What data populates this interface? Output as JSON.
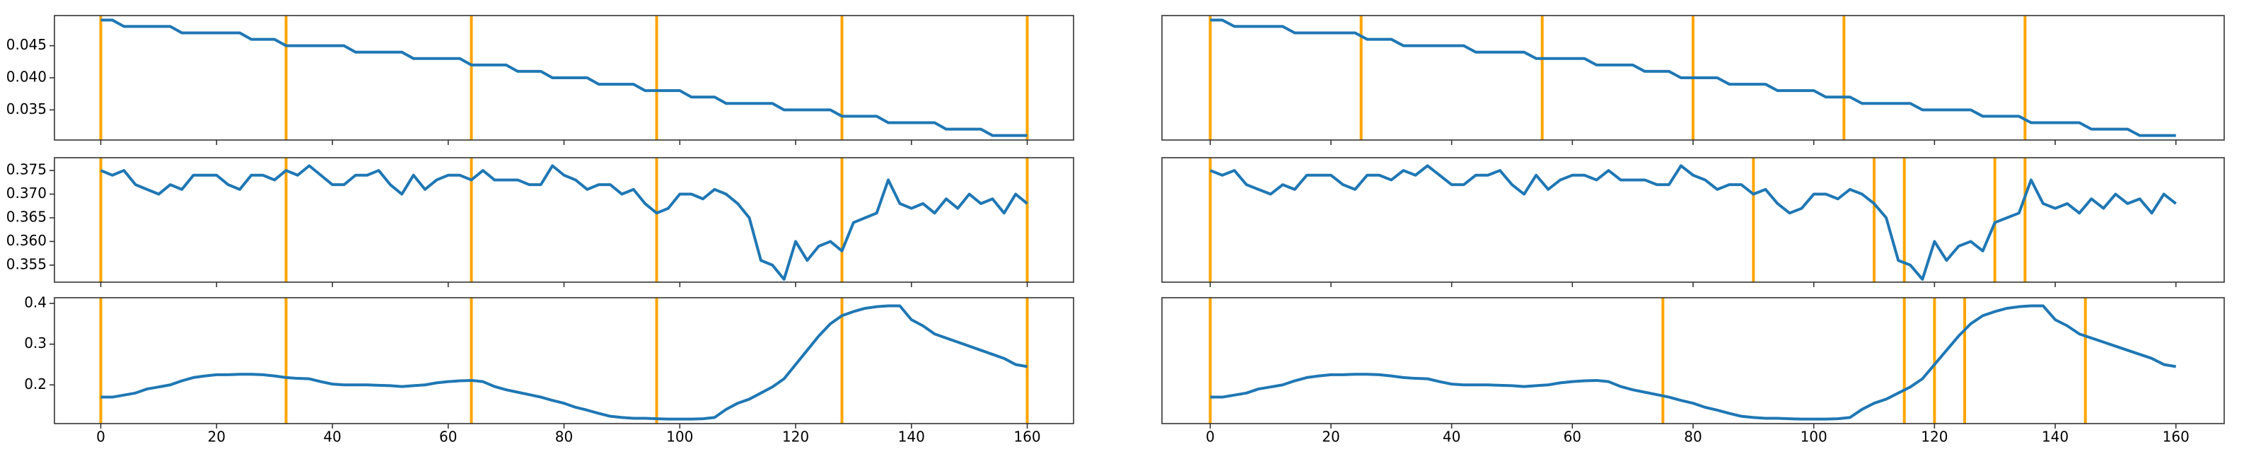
{
  "chart_data": [
    {
      "type": "line",
      "color": "#1f77b4",
      "vline_color": "#ffa500",
      "x": [
        0,
        2,
        4,
        6,
        8,
        10,
        12,
        14,
        16,
        18,
        20,
        22,
        24,
        26,
        28,
        30,
        32,
        34,
        36,
        38,
        40,
        42,
        44,
        46,
        48,
        50,
        52,
        54,
        56,
        58,
        60,
        62,
        64,
        66,
        68,
        70,
        72,
        74,
        76,
        78,
        80,
        82,
        84,
        86,
        88,
        90,
        92,
        94,
        96,
        98,
        100,
        102,
        104,
        106,
        108,
        110,
        112,
        114,
        116,
        118,
        120,
        122,
        124,
        126,
        128,
        130,
        132,
        134,
        136,
        138,
        140,
        142,
        144,
        146,
        148,
        150,
        152,
        154,
        156,
        158,
        160
      ],
      "values": [
        0.049,
        0.049,
        0.048,
        0.048,
        0.048,
        0.048,
        0.048,
        0.047,
        0.047,
        0.047,
        0.047,
        0.047,
        0.047,
        0.046,
        0.046,
        0.046,
        0.045,
        0.045,
        0.045,
        0.045,
        0.045,
        0.045,
        0.044,
        0.044,
        0.044,
        0.044,
        0.044,
        0.043,
        0.043,
        0.043,
        0.043,
        0.043,
        0.042,
        0.042,
        0.042,
        0.042,
        0.041,
        0.041,
        0.041,
        0.04,
        0.04,
        0.04,
        0.04,
        0.039,
        0.039,
        0.039,
        0.039,
        0.038,
        0.038,
        0.038,
        0.038,
        0.037,
        0.037,
        0.037,
        0.036,
        0.036,
        0.036,
        0.036,
        0.036,
        0.035,
        0.035,
        0.035,
        0.035,
        0.035,
        0.034,
        0.034,
        0.034,
        0.034,
        0.033,
        0.033,
        0.033,
        0.033,
        0.033,
        0.032,
        0.032,
        0.032,
        0.032,
        0.031,
        0.031,
        0.031,
        0.031
      ],
      "vlines": [
        0,
        32,
        64,
        96,
        128,
        160
      ],
      "xlim": [
        -8,
        168
      ],
      "xticks": [
        0,
        20,
        40,
        60,
        80,
        100,
        120,
        140,
        160
      ],
      "ylim": [
        0.0303,
        0.0497
      ],
      "yticks": [
        0.035,
        {
          "value": 0.04,
          "label": "0.040"
        },
        0.045
      ]
    },
    {
      "type": "line",
      "color": "#1f77b4",
      "vline_color": "#ffa500",
      "x": [
        0,
        2,
        4,
        6,
        8,
        10,
        12,
        14,
        16,
        18,
        20,
        22,
        24,
        26,
        28,
        30,
        32,
        34,
        36,
        38,
        40,
        42,
        44,
        46,
        48,
        50,
        52,
        54,
        56,
        58,
        60,
        62,
        64,
        66,
        68,
        70,
        72,
        74,
        76,
        78,
        80,
        82,
        84,
        86,
        88,
        90,
        92,
        94,
        96,
        98,
        100,
        102,
        104,
        106,
        108,
        110,
        112,
        114,
        116,
        118,
        120,
        122,
        124,
        126,
        128,
        130,
        132,
        134,
        136,
        138,
        140,
        142,
        144,
        146,
        148,
        150,
        152,
        154,
        156,
        158,
        160
      ],
      "values": [
        0.375,
        0.374,
        0.375,
        0.372,
        0.371,
        0.37,
        0.372,
        0.371,
        0.374,
        0.374,
        0.374,
        0.372,
        0.371,
        0.374,
        0.374,
        0.373,
        0.375,
        0.374,
        0.376,
        0.374,
        0.372,
        0.372,
        0.374,
        0.374,
        0.375,
        0.372,
        0.37,
        0.374,
        0.371,
        0.373,
        0.374,
        0.374,
        0.373,
        0.375,
        0.373,
        0.373,
        0.373,
        0.372,
        0.372,
        0.376,
        0.374,
        0.373,
        0.371,
        0.372,
        0.372,
        0.37,
        0.371,
        0.368,
        0.366,
        0.367,
        0.37,
        0.37,
        0.369,
        0.371,
        0.37,
        0.368,
        0.365,
        0.356,
        0.355,
        0.352,
        0.36,
        0.356,
        0.359,
        0.36,
        0.358,
        0.364,
        0.365,
        0.366,
        0.373,
        0.368,
        0.367,
        0.368,
        0.366,
        0.369,
        0.367,
        0.37,
        0.368,
        0.369,
        0.366,
        0.37,
        0.368
      ],
      "vlines": [
        0,
        32,
        64,
        96,
        128,
        160
      ],
      "xlim": [
        -8,
        168
      ],
      "xticks": [
        0,
        20,
        40,
        60,
        80,
        100,
        120,
        140,
        160
      ],
      "ylim": [
        0.3514,
        0.3777
      ],
      "yticks": [
        0.355,
        {
          "value": 0.36,
          "label": "0.360"
        },
        0.365,
        {
          "value": 0.37,
          "label": "0.370"
        },
        0.375
      ]
    },
    {
      "type": "line",
      "color": "#1f77b4",
      "vline_color": "#ffa500",
      "x": [
        0,
        2,
        4,
        6,
        8,
        10,
        12,
        14,
        16,
        18,
        20,
        22,
        24,
        26,
        28,
        30,
        32,
        34,
        36,
        38,
        40,
        42,
        44,
        46,
        48,
        50,
        52,
        54,
        56,
        58,
        60,
        62,
        64,
        66,
        68,
        70,
        72,
        74,
        76,
        78,
        80,
        82,
        84,
        86,
        88,
        90,
        92,
        94,
        96,
        98,
        100,
        102,
        104,
        106,
        108,
        110,
        112,
        114,
        116,
        118,
        120,
        122,
        124,
        126,
        128,
        130,
        132,
        134,
        136,
        138,
        140,
        142,
        144,
        146,
        148,
        150,
        152,
        154,
        156,
        158,
        160
      ],
      "values": [
        0.17,
        0.17,
        0.175,
        0.18,
        0.19,
        0.195,
        0.2,
        0.21,
        0.218,
        0.222,
        0.225,
        0.225,
        0.226,
        0.226,
        0.225,
        0.222,
        0.218,
        0.216,
        0.215,
        0.208,
        0.202,
        0.2,
        0.2,
        0.2,
        0.199,
        0.198,
        0.196,
        0.198,
        0.2,
        0.205,
        0.208,
        0.21,
        0.211,
        0.208,
        0.196,
        0.188,
        0.182,
        0.176,
        0.17,
        0.162,
        0.155,
        0.145,
        0.138,
        0.13,
        0.123,
        0.12,
        0.118,
        0.118,
        0.117,
        0.116,
        0.116,
        0.116,
        0.117,
        0.12,
        0.14,
        0.155,
        0.165,
        0.18,
        0.195,
        0.215,
        0.25,
        0.285,
        0.32,
        0.35,
        0.37,
        0.38,
        0.388,
        0.392,
        0.394,
        0.394,
        0.36,
        0.345,
        0.325,
        0.315,
        0.305,
        0.295,
        0.285,
        0.275,
        0.265,
        0.25,
        0.245
      ],
      "vlines": [
        0,
        32,
        64,
        96,
        128,
        160
      ],
      "xlim": [
        -8,
        168
      ],
      "xticks": [
        0,
        20,
        40,
        60,
        80,
        100,
        120,
        140,
        160
      ],
      "ylim": [
        0.105,
        0.414
      ],
      "yticks": [
        0.2,
        0.3,
        0.4
      ]
    },
    {
      "type": "line",
      "color": "#1f77b4",
      "vline_color": "#ffa500",
      "x": [
        0,
        2,
        4,
        6,
        8,
        10,
        12,
        14,
        16,
        18,
        20,
        22,
        24,
        26,
        28,
        30,
        32,
        34,
        36,
        38,
        40,
        42,
        44,
        46,
        48,
        50,
        52,
        54,
        56,
        58,
        60,
        62,
        64,
        66,
        68,
        70,
        72,
        74,
        76,
        78,
        80,
        82,
        84,
        86,
        88,
        90,
        92,
        94,
        96,
        98,
        100,
        102,
        104,
        106,
        108,
        110,
        112,
        114,
        116,
        118,
        120,
        122,
        124,
        126,
        128,
        130,
        132,
        134,
        136,
        138,
        140,
        142,
        144,
        146,
        148,
        150,
        152,
        154,
        156,
        158,
        160
      ],
      "values": [
        0.049,
        0.049,
        0.048,
        0.048,
        0.048,
        0.048,
        0.048,
        0.047,
        0.047,
        0.047,
        0.047,
        0.047,
        0.047,
        0.046,
        0.046,
        0.046,
        0.045,
        0.045,
        0.045,
        0.045,
        0.045,
        0.045,
        0.044,
        0.044,
        0.044,
        0.044,
        0.044,
        0.043,
        0.043,
        0.043,
        0.043,
        0.043,
        0.042,
        0.042,
        0.042,
        0.042,
        0.041,
        0.041,
        0.041,
        0.04,
        0.04,
        0.04,
        0.04,
        0.039,
        0.039,
        0.039,
        0.039,
        0.038,
        0.038,
        0.038,
        0.038,
        0.037,
        0.037,
        0.037,
        0.036,
        0.036,
        0.036,
        0.036,
        0.036,
        0.035,
        0.035,
        0.035,
        0.035,
        0.035,
        0.034,
        0.034,
        0.034,
        0.034,
        0.033,
        0.033,
        0.033,
        0.033,
        0.033,
        0.032,
        0.032,
        0.032,
        0.032,
        0.031,
        0.031,
        0.031,
        0.031
      ],
      "vlines": [
        0,
        25,
        55,
        80,
        105,
        135
      ],
      "xlim": [
        -8,
        168
      ],
      "xticks": [
        0,
        20,
        40,
        60,
        80,
        100,
        120,
        140,
        160
      ],
      "ylim": [
        0.0303,
        0.0497
      ]
    },
    {
      "type": "line",
      "color": "#1f77b4",
      "vline_color": "#ffa500",
      "x": [
        0,
        2,
        4,
        6,
        8,
        10,
        12,
        14,
        16,
        18,
        20,
        22,
        24,
        26,
        28,
        30,
        32,
        34,
        36,
        38,
        40,
        42,
        44,
        46,
        48,
        50,
        52,
        54,
        56,
        58,
        60,
        62,
        64,
        66,
        68,
        70,
        72,
        74,
        76,
        78,
        80,
        82,
        84,
        86,
        88,
        90,
        92,
        94,
        96,
        98,
        100,
        102,
        104,
        106,
        108,
        110,
        112,
        114,
        116,
        118,
        120,
        122,
        124,
        126,
        128,
        130,
        132,
        134,
        136,
        138,
        140,
        142,
        144,
        146,
        148,
        150,
        152,
        154,
        156,
        158,
        160
      ],
      "values": [
        0.375,
        0.374,
        0.375,
        0.372,
        0.371,
        0.37,
        0.372,
        0.371,
        0.374,
        0.374,
        0.374,
        0.372,
        0.371,
        0.374,
        0.374,
        0.373,
        0.375,
        0.374,
        0.376,
        0.374,
        0.372,
        0.372,
        0.374,
        0.374,
        0.375,
        0.372,
        0.37,
        0.374,
        0.371,
        0.373,
        0.374,
        0.374,
        0.373,
        0.375,
        0.373,
        0.373,
        0.373,
        0.372,
        0.372,
        0.376,
        0.374,
        0.373,
        0.371,
        0.372,
        0.372,
        0.37,
        0.371,
        0.368,
        0.366,
        0.367,
        0.37,
        0.37,
        0.369,
        0.371,
        0.37,
        0.368,
        0.365,
        0.356,
        0.355,
        0.352,
        0.36,
        0.356,
        0.359,
        0.36,
        0.358,
        0.364,
        0.365,
        0.366,
        0.373,
        0.368,
        0.367,
        0.368,
        0.366,
        0.369,
        0.367,
        0.37,
        0.368,
        0.369,
        0.366,
        0.37,
        0.368
      ],
      "vlines": [
        0,
        90,
        110,
        115,
        130,
        135
      ],
      "xlim": [
        -8,
        168
      ],
      "xticks": [
        0,
        20,
        40,
        60,
        80,
        100,
        120,
        140,
        160
      ],
      "ylim": [
        0.3514,
        0.3777
      ]
    },
    {
      "type": "line",
      "color": "#1f77b4",
      "vline_color": "#ffa500",
      "x": [
        0,
        2,
        4,
        6,
        8,
        10,
        12,
        14,
        16,
        18,
        20,
        22,
        24,
        26,
        28,
        30,
        32,
        34,
        36,
        38,
        40,
        42,
        44,
        46,
        48,
        50,
        52,
        54,
        56,
        58,
        60,
        62,
        64,
        66,
        68,
        70,
        72,
        74,
        76,
        78,
        80,
        82,
        84,
        86,
        88,
        90,
        92,
        94,
        96,
        98,
        100,
        102,
        104,
        106,
        108,
        110,
        112,
        114,
        116,
        118,
        120,
        122,
        124,
        126,
        128,
        130,
        132,
        134,
        136,
        138,
        140,
        142,
        144,
        146,
        148,
        150,
        152,
        154,
        156,
        158,
        160
      ],
      "values": [
        0.17,
        0.17,
        0.175,
        0.18,
        0.19,
        0.195,
        0.2,
        0.21,
        0.218,
        0.222,
        0.225,
        0.225,
        0.226,
        0.226,
        0.225,
        0.222,
        0.218,
        0.216,
        0.215,
        0.208,
        0.202,
        0.2,
        0.2,
        0.2,
        0.199,
        0.198,
        0.196,
        0.198,
        0.2,
        0.205,
        0.208,
        0.21,
        0.211,
        0.208,
        0.196,
        0.188,
        0.182,
        0.176,
        0.17,
        0.162,
        0.155,
        0.145,
        0.138,
        0.13,
        0.123,
        0.12,
        0.118,
        0.118,
        0.117,
        0.116,
        0.116,
        0.116,
        0.117,
        0.12,
        0.14,
        0.155,
        0.165,
        0.18,
        0.195,
        0.215,
        0.25,
        0.285,
        0.32,
        0.35,
        0.37,
        0.38,
        0.388,
        0.392,
        0.394,
        0.394,
        0.36,
        0.345,
        0.325,
        0.315,
        0.305,
        0.295,
        0.285,
        0.275,
        0.265,
        0.25,
        0.245
      ],
      "vlines": [
        0,
        75,
        115,
        120,
        125,
        145
      ],
      "xlim": [
        -8,
        168
      ],
      "xticks": [
        0,
        20,
        40,
        60,
        80,
        100,
        120,
        140,
        160
      ],
      "ylim": [
        0.105,
        0.414
      ]
    }
  ]
}
